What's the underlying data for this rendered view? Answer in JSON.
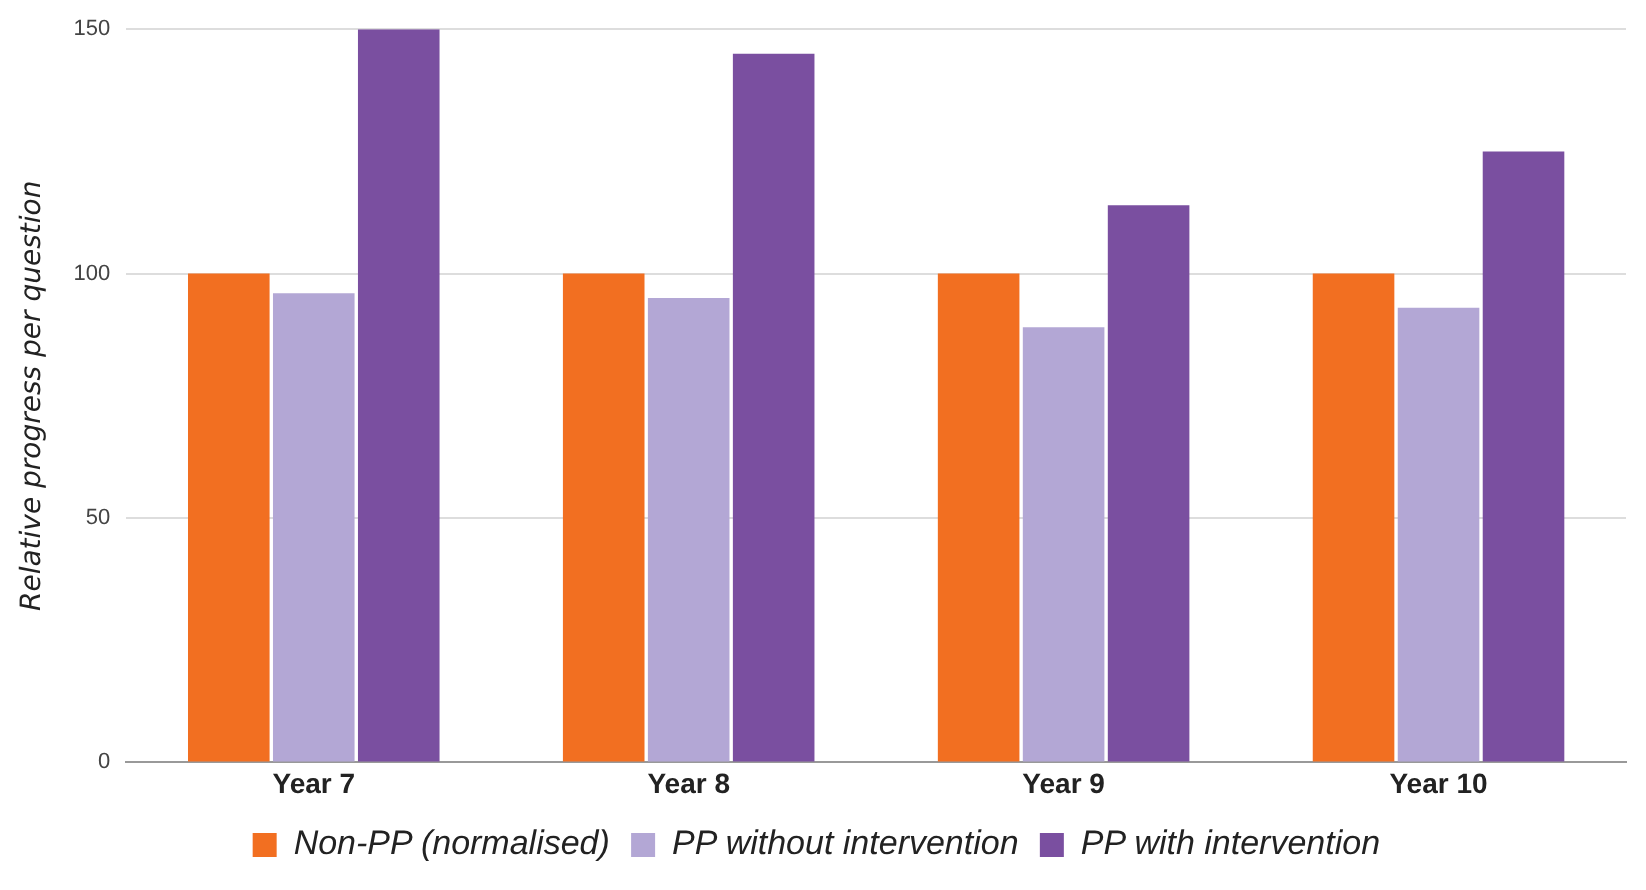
{
  "chart_data": {
    "type": "bar",
    "ylabel": "Relative progress per question",
    "categories": [
      "Year 7",
      "Year 8",
      "Year 9",
      "Year 10"
    ],
    "series": [
      {
        "name": "Non-PP (normalised)",
        "color": "#f26f21",
        "values": [
          100,
          100,
          100,
          100
        ]
      },
      {
        "name": "PP without intervention",
        "color": "#b3a7d5",
        "values": [
          96,
          95,
          89,
          93
        ]
      },
      {
        "name": "PP with intervention",
        "color": "#7a4fa0",
        "values": [
          150,
          145,
          114,
          125
        ]
      }
    ],
    "ylim": [
      0,
      150
    ],
    "yticks": [
      0,
      50,
      100,
      150
    ],
    "grid": "y",
    "legend": "bottom"
  }
}
